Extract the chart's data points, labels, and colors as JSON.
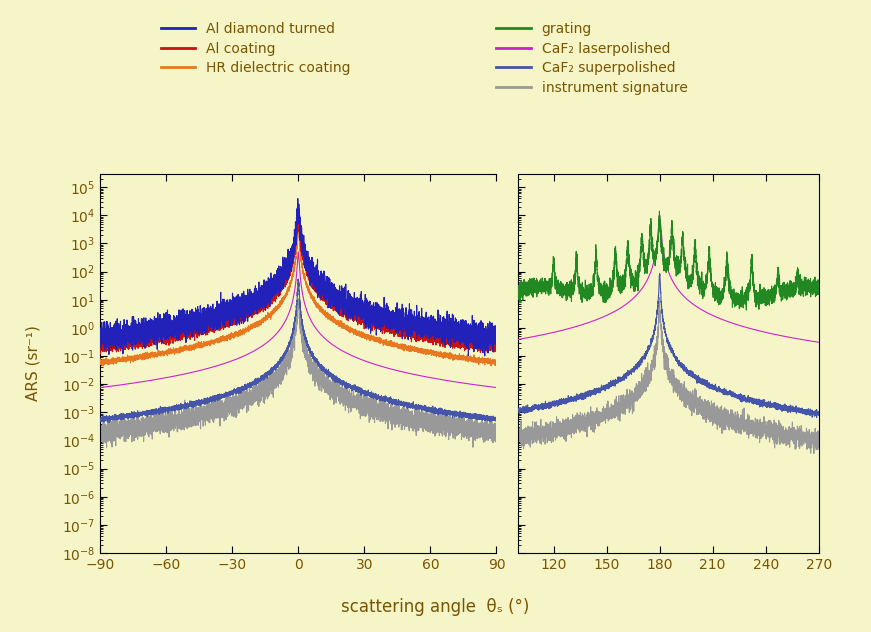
{
  "background_color": "#f5f5c8",
  "xlabel": "scattering angle  θₛ (°)",
  "ylabel": "ARS (sr⁻¹)",
  "ylim": [
    1e-08,
    300000.0
  ],
  "xticks_left": [
    -90,
    -60,
    -30,
    0,
    30,
    60,
    90
  ],
  "xticks_right": [
    120,
    150,
    180,
    210,
    240,
    270
  ],
  "legend_entries": [
    {
      "label": "Al diamond turned",
      "color": "#2222bb"
    },
    {
      "label": "Al coating",
      "color": "#cc1111"
    },
    {
      "label": "HR dielectric coating",
      "color": "#e87820"
    },
    {
      "label": "grating",
      "color": "#228822"
    },
    {
      "label": "CaF₂ laserpolished",
      "color": "#cc22cc"
    },
    {
      "label": "CaF₂ superpolished",
      "color": "#4455aa"
    },
    {
      "label": "instrument signature",
      "color": "#999999"
    }
  ],
  "text_color": "#7a5500",
  "lw": 0.8
}
